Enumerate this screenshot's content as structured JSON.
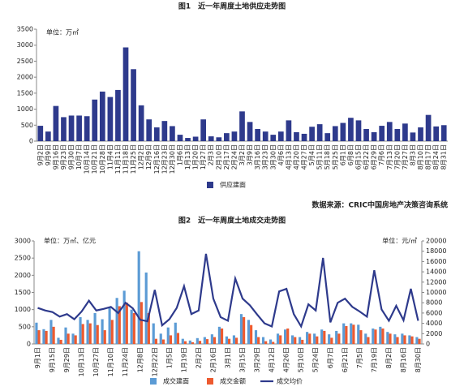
{
  "chart_data": [
    {
      "type": "bar",
      "title": "图1　近一年周度土地供应走势图",
      "y_label": "单位：万㎡",
      "categories": [
        "9月2日",
        "9月9日",
        "9月16日",
        "9月23日",
        "9月30日",
        "10月7日",
        "10月14日",
        "10月21日",
        "10月28日",
        "11月4日",
        "11月11日",
        "11月18日",
        "11月25日",
        "12月2日",
        "12月9日",
        "12月16日",
        "12月23日",
        "12月30日",
        "1月6日",
        "1月13日",
        "1月20日",
        "1月27日",
        "2月3日",
        "2月10日",
        "2月17日",
        "2月24日",
        "3月2日",
        "3月9日",
        "3月16日",
        "3月23日",
        "3月30日",
        "4月6日",
        "4月13日",
        "4月20日",
        "4月27日",
        "5月4日",
        "5月11日",
        "5月18日",
        "5月25日",
        "6月1日",
        "6月8日",
        "6月15日",
        "6月22日",
        "6月29日",
        "7月6日",
        "7月13日",
        "7月20日",
        "7月27日",
        "8月3日",
        "8月10日",
        "8月17日",
        "8月24日",
        "8月31日"
      ],
      "series": [
        {
          "name": "供应建面",
          "color": "#2e3a8c",
          "values": [
            480,
            300,
            1100,
            750,
            800,
            800,
            780,
            1300,
            1550,
            1380,
            1600,
            2930,
            2250,
            1120,
            680,
            430,
            630,
            470,
            200,
            100,
            140,
            680,
            150,
            120,
            250,
            300,
            930,
            600,
            380,
            300,
            200,
            300,
            650,
            280,
            230,
            450,
            530,
            250,
            470,
            570,
            730,
            650,
            380,
            280,
            480,
            600,
            380,
            550,
            270,
            430,
            820,
            460,
            500
          ]
        }
      ],
      "ylim": [
        0,
        3500
      ],
      "yticks": [
        0,
        500,
        1000,
        1500,
        2000,
        2500,
        3000,
        3500
      ],
      "legend": "bottom",
      "source": "数据来源：CRIC中国房地产决策咨询系统"
    },
    {
      "type": "combo",
      "title": "图2　近一年周度土地成交走势图",
      "y_label": "单位：万㎡、亿元",
      "y2_label": "单位：元/㎡",
      "categories": [
        "9月1日",
        null,
        "9月15日",
        null,
        "9月29日",
        null,
        "10月13日",
        null,
        "10月27日",
        null,
        "11月10日",
        null,
        "11月24日",
        null,
        "12月8日",
        null,
        "12月22日",
        null,
        "1月5日",
        null,
        "1月19日",
        null,
        "2月2日",
        null,
        "2月16日",
        null,
        "3月1日",
        null,
        "3月15日",
        null,
        "3月29日",
        null,
        "4月12日",
        null,
        "4月26日",
        null,
        "5月10日",
        null,
        "5月24日",
        null,
        "6月7日",
        null,
        "6月21日",
        null,
        "7月5日",
        null,
        "7月19日",
        null,
        "8月2日",
        null,
        "8月16日",
        null,
        "8月30日"
      ],
      "series": [
        {
          "name": "成交建面",
          "color": "#5b9bd5",
          "values": [
            620,
            430,
            700,
            180,
            480,
            300,
            780,
            700,
            900,
            720,
            1050,
            1340,
            1550,
            1000,
            2700,
            2080,
            600,
            300,
            480,
            620,
            150,
            100,
            170,
            200,
            280,
            500,
            220,
            250,
            870,
            700,
            400,
            200,
            130,
            300,
            420,
            250,
            200,
            350,
            300,
            420,
            280,
            380,
            600,
            600,
            560,
            300,
            450,
            500,
            350,
            280,
            300,
            250,
            200
          ]
        },
        {
          "name": "成交金额",
          "color": "#ed5a2f",
          "values": [
            400,
            380,
            500,
            120,
            300,
            250,
            580,
            600,
            550,
            400,
            700,
            1100,
            1200,
            900,
            1220,
            900,
            150,
            130,
            250,
            320,
            80,
            50,
            90,
            140,
            200,
            450,
            150,
            180,
            780,
            550,
            200,
            80,
            60,
            250,
            450,
            200,
            120,
            300,
            220,
            380,
            180,
            300,
            520,
            560,
            400,
            200,
            420,
            450,
            300,
            200,
            250,
            220,
            150
          ]
        },
        {
          "name": "成交均价",
          "color": "#2e3a8c",
          "axis": "y2",
          "values": [
            7000,
            6500,
            6200,
            5300,
            5800,
            4800,
            6300,
            8400,
            6500,
            6800,
            7200,
            6000,
            8000,
            6900,
            4700,
            4400,
            10500,
            3600,
            4800,
            7000,
            11200,
            5800,
            6500,
            17500,
            8800,
            5200,
            4500,
            12700,
            8800,
            7500,
            5700,
            4000,
            3400,
            10200,
            10700,
            5800,
            3400,
            7700,
            6500,
            16700,
            4200,
            8000,
            8800,
            7200,
            6300,
            5300,
            14300,
            6700,
            4500,
            7400,
            4600,
            10700,
            4500
          ]
        }
      ],
      "ylim": [
        0,
        3000
      ],
      "yticks": [
        0,
        500,
        1000,
        1500,
        2000,
        2500,
        3000
      ],
      "y2lim": [
        0,
        20000
      ],
      "y2ticks": [
        0,
        2000,
        4000,
        6000,
        8000,
        10000,
        12000,
        14000,
        16000,
        18000,
        20000
      ],
      "legend": "bottom"
    }
  ]
}
